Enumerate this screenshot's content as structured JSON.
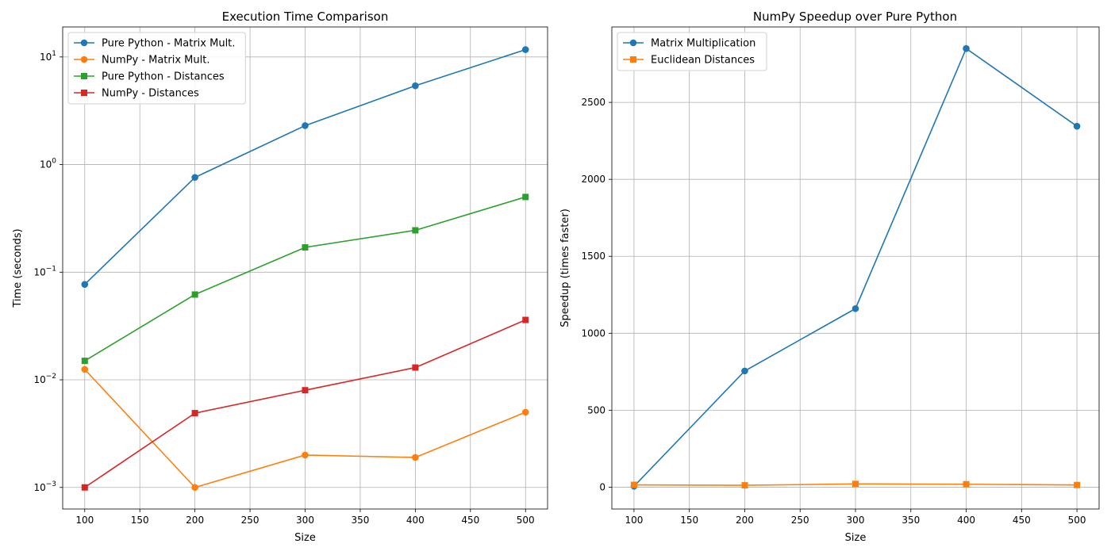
{
  "chart_data": [
    {
      "type": "line",
      "title": "Execution Time Comparison",
      "xlabel": "Size",
      "ylabel": "Time (seconds)",
      "yscale": "log",
      "xlim": [
        80,
        520
      ],
      "ylim": [
        0.00063,
        19
      ],
      "xticks": [
        100,
        150,
        200,
        250,
        300,
        350,
        400,
        450,
        500
      ],
      "yticks": [
        {
          "value": 0.001,
          "label": "10",
          "exp": "−3"
        },
        {
          "value": 0.01,
          "label": "10",
          "exp": "−2"
        },
        {
          "value": 0.1,
          "label": "10",
          "exp": "−1"
        },
        {
          "value": 1,
          "label": "10",
          "exp": "0"
        },
        {
          "value": 10,
          "label": "10",
          "exp": "1"
        }
      ],
      "grid": true,
      "legend": "upper-left",
      "x": [
        100,
        200,
        300,
        400,
        500
      ],
      "series": [
        {
          "name": "Pure Python - Matrix Mult.",
          "values": [
            0.077,
            0.76,
            2.3,
            5.4,
            11.7
          ],
          "color": "#1f77b4",
          "marker": "circle"
        },
        {
          "name": "NumPy - Matrix Mult.",
          "values": [
            0.0125,
            0.001,
            0.002,
            0.0019,
            0.005
          ],
          "color": "#ff7f0e",
          "marker": "circle"
        },
        {
          "name": "Pure Python - Distances",
          "values": [
            0.015,
            0.062,
            0.17,
            0.245,
            0.5
          ],
          "color": "#2ca02c",
          "marker": "square"
        },
        {
          "name": "NumPy - Distances",
          "values": [
            0.001,
            0.0049,
            0.008,
            0.013,
            0.036
          ],
          "color": "#d62728",
          "marker": "square"
        }
      ]
    },
    {
      "type": "line",
      "title": "NumPy Speedup over Pure Python",
      "xlabel": "Size",
      "ylabel": "Speedup (times faster)",
      "yscale": "linear",
      "xlim": [
        80,
        520
      ],
      "ylim": [
        -142,
        2990
      ],
      "xticks": [
        100,
        150,
        200,
        250,
        300,
        350,
        400,
        450,
        500
      ],
      "yticks": [
        {
          "value": 0,
          "label": "0"
        },
        {
          "value": 500,
          "label": "500"
        },
        {
          "value": 1000,
          "label": "1000"
        },
        {
          "value": 1500,
          "label": "1500"
        },
        {
          "value": 2000,
          "label": "2000"
        },
        {
          "value": 2500,
          "label": "2500"
        }
      ],
      "grid": true,
      "legend": "upper-left",
      "x": [
        100,
        200,
        300,
        400,
        500
      ],
      "series": [
        {
          "name": "Matrix Multiplication",
          "values": [
            6,
            755,
            1160,
            2850,
            2345
          ],
          "color": "#1f77b4",
          "marker": "circle"
        },
        {
          "name": "Euclidean Distances",
          "values": [
            15,
            12,
            21,
            19,
            14
          ],
          "color": "#ff7f0e",
          "marker": "square"
        }
      ]
    }
  ]
}
